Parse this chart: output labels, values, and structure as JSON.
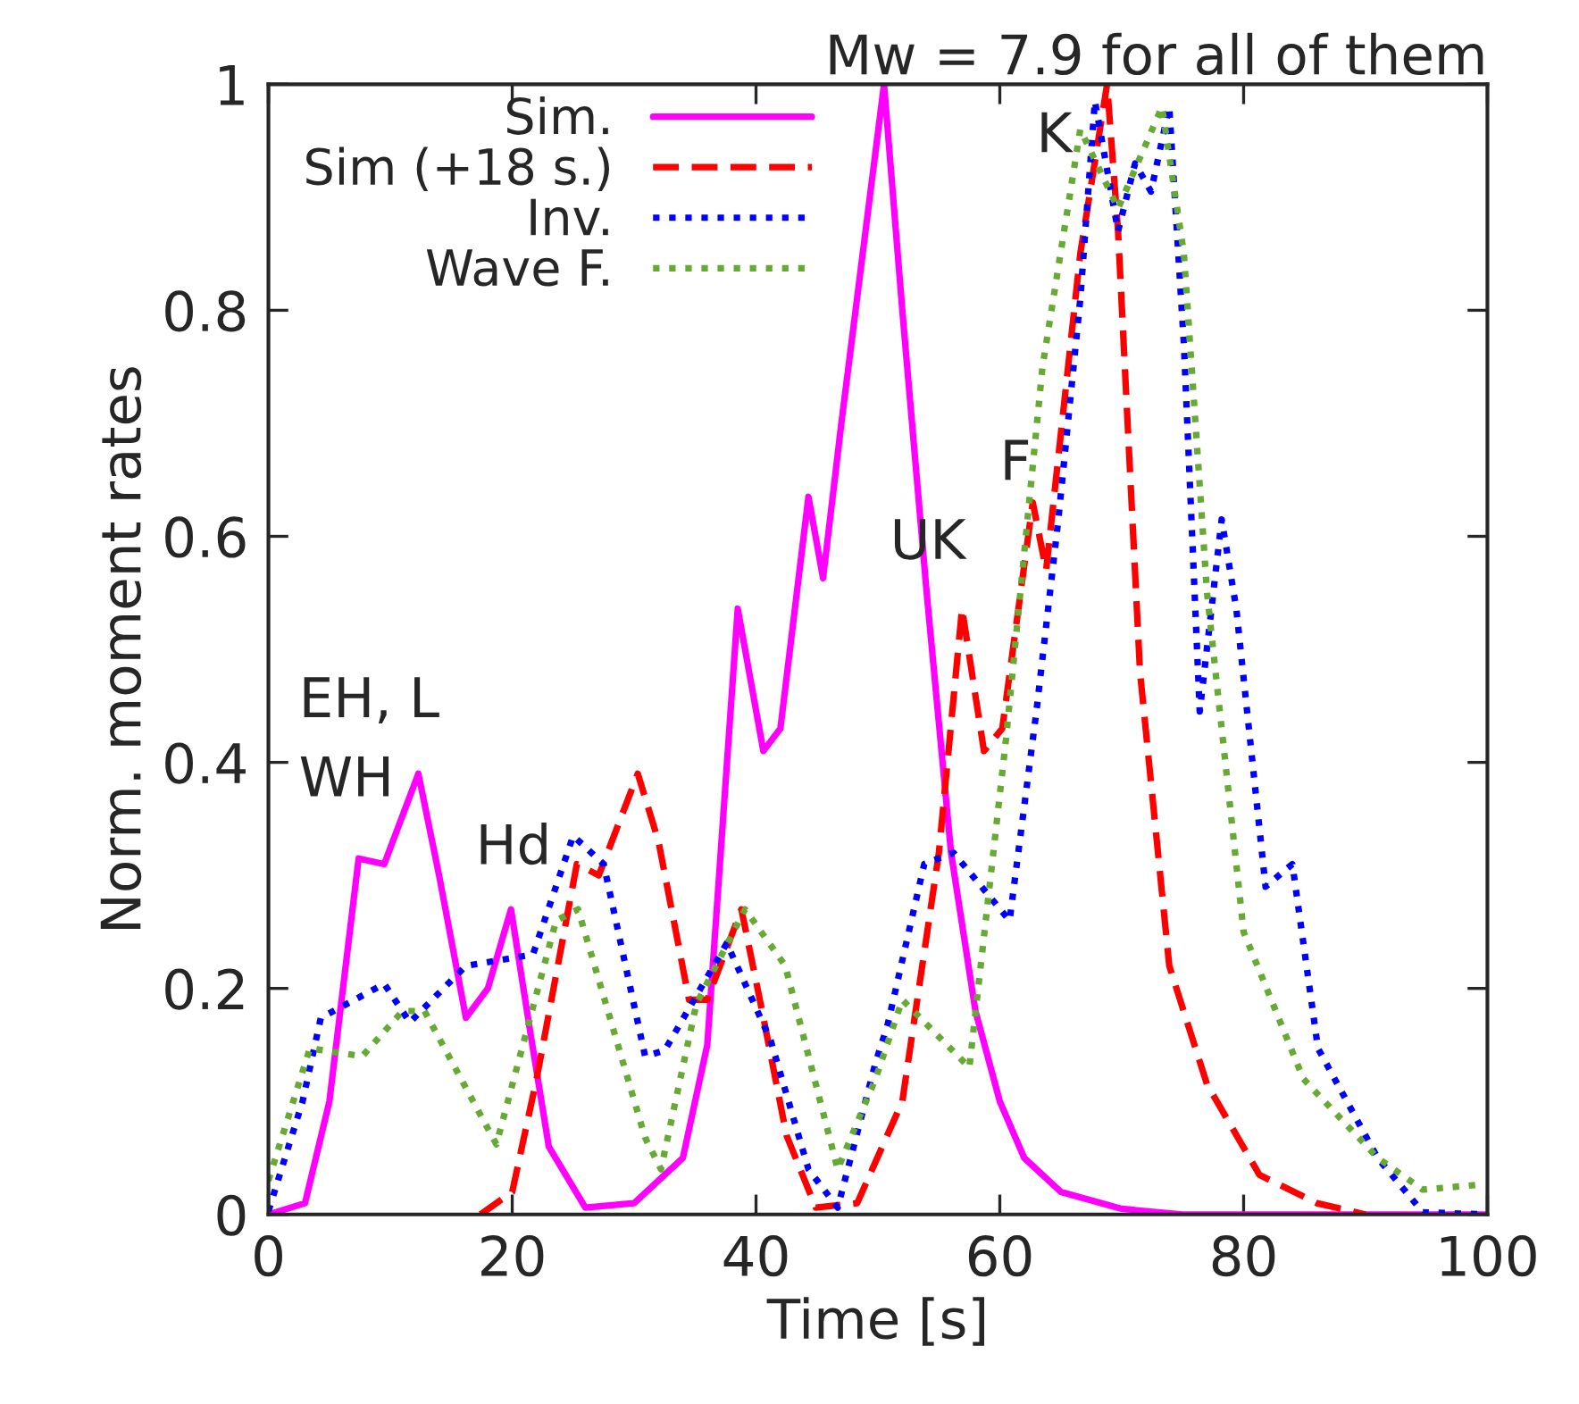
{
  "chart_data": {
    "type": "line",
    "title": "Mw = 7.9 for all of them",
    "xlabel": "Time [s]",
    "ylabel": "Norm. moment rates",
    "xlim": [
      0,
      100
    ],
    "ylim": [
      0,
      1
    ],
    "xticks": [
      0,
      20,
      40,
      60,
      80,
      100
    ],
    "yticks": [
      0,
      0.2,
      0.4,
      0.6,
      0.8,
      1
    ],
    "grid": false,
    "legend": "top left",
    "marker": "none",
    "series": [
      {
        "name": "Sim.",
        "color": "#ff00ff",
        "line_style": "solid",
        "x": [
          0,
          3,
          5,
          7.4,
          9.5,
          12.3,
          14,
          16.2,
          18,
          19.9,
          21.5,
          23,
          26,
          30,
          34,
          36,
          38.5,
          40.6,
          42,
          44.3,
          45.5,
          47,
          50.5,
          52,
          54,
          56,
          58,
          60,
          62,
          65,
          70,
          75,
          100
        ],
        "values": [
          0,
          0.01,
          0.1,
          0.315,
          0.31,
          0.39,
          0.3,
          0.174,
          0.2,
          0.27,
          0.16,
          0.06,
          0.006,
          0.01,
          0.05,
          0.15,
          0.536,
          0.41,
          0.43,
          0.635,
          0.563,
          0.7,
          1.0,
          0.8,
          0.55,
          0.32,
          0.18,
          0.1,
          0.05,
          0.02,
          0.005,
          0,
          0
        ]
      },
      {
        "name": "Sim (+18 s.)",
        "color": "#ff0000",
        "line_style": "dashed",
        "x": [
          17.4,
          20,
          22,
          25.3,
          27.1,
          30.3,
          32,
          34.5,
          36,
          38.8,
          40.5,
          42.5,
          44.9,
          48.3,
          52,
          55,
          56.9,
          58.7,
          60.2,
          62.7,
          63.8,
          66.6,
          68.8,
          69.7,
          71.5,
          73.9,
          77,
          81.3,
          86,
          90
        ],
        "values": [
          0,
          0.02,
          0.12,
          0.31,
          0.3,
          0.39,
          0.33,
          0.19,
          0.19,
          0.27,
          0.18,
          0.07,
          0.006,
          0.01,
          0.1,
          0.32,
          0.536,
          0.41,
          0.43,
          0.63,
          0.57,
          0.85,
          1.0,
          0.87,
          0.48,
          0.22,
          0.115,
          0.035,
          0.01,
          0
        ]
      },
      {
        "name": "Inv.",
        "color": "#0000ff",
        "line_style": "dotted",
        "x": [
          0,
          2.8,
          4.3,
          9.5,
          11.6,
          16.2,
          21.7,
          25,
          27.5,
          30.9,
          32.5,
          37.6,
          41.2,
          44.3,
          46.7,
          49.8,
          50.8,
          53.8,
          56.2,
          60.8,
          63,
          64.8,
          66.6,
          67.8,
          69.7,
          71.1,
          72.4,
          73.9,
          75.1,
          76.4,
          78.2,
          79.4,
          81.8,
          84,
          86.1,
          91,
          94.7,
          100
        ],
        "values": [
          0.003,
          0.1,
          0.174,
          0.204,
          0.17,
          0.22,
          0.23,
          0.335,
          0.31,
          0.14,
          0.145,
          0.24,
          0.154,
          0.04,
          0.006,
          0.134,
          0.168,
          0.31,
          0.32,
          0.26,
          0.445,
          0.615,
          0.81,
          0.985,
          0.87,
          0.93,
          0.905,
          0.98,
          0.77,
          0.445,
          0.615,
          0.536,
          0.29,
          0.31,
          0.147,
          0.05,
          0.002,
          0
        ]
      },
      {
        "name": "Wave F.",
        "color": "#66aa33",
        "line_style": "dotted",
        "x": [
          0,
          3.4,
          7.7,
          11,
          12.8,
          18.7,
          23.6,
          25.4,
          30.9,
          32.2,
          35.1,
          39.1,
          42.4,
          46.7,
          49.8,
          52,
          57.5,
          60.5,
          63.5,
          66.6,
          69.7,
          73.3,
          75.1,
          77,
          80,
          84.9,
          91,
          94.7,
          99
        ],
        "values": [
          0.03,
          0.147,
          0.14,
          0.18,
          0.18,
          0.062,
          0.26,
          0.27,
          0.068,
          0.04,
          0.186,
          0.27,
          0.22,
          0.04,
          0.12,
          0.19,
          0.13,
          0.42,
          0.75,
          0.96,
          0.89,
          0.98,
          0.85,
          0.55,
          0.25,
          0.12,
          0.05,
          0.022,
          0.026
        ]
      }
    ],
    "annotations": [
      "EH, L",
      "WH",
      "Hd",
      "UK",
      "F",
      "K"
    ]
  }
}
